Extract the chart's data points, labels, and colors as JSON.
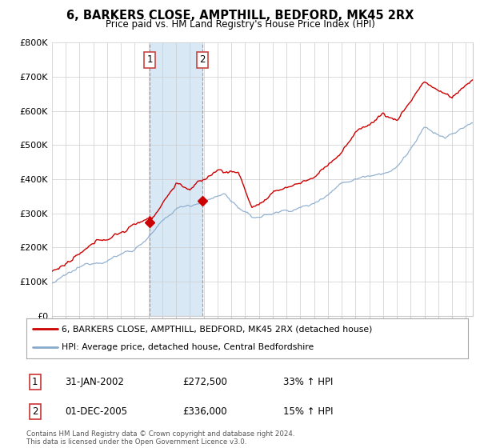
{
  "title": "6, BARKERS CLOSE, AMPTHILL, BEDFORD, MK45 2RX",
  "subtitle": "Price paid vs. HM Land Registry's House Price Index (HPI)",
  "ylabel_ticks": [
    "£0",
    "£100K",
    "£200K",
    "£300K",
    "£400K",
    "£500K",
    "£600K",
    "£700K",
    "£800K"
  ],
  "ytick_values": [
    0,
    100000,
    200000,
    300000,
    400000,
    500000,
    600000,
    700000,
    800000
  ],
  "ylim": [
    0,
    800000
  ],
  "xlim_start": 1995.0,
  "xlim_end": 2025.5,
  "sale1_x": 2002.083,
  "sale1_y": 272500,
  "sale1_label": "1",
  "sale2_x": 2005.917,
  "sale2_y": 336000,
  "sale2_label": "2",
  "vline1_x": 2002.083,
  "vline2_x": 2005.917,
  "legend_line1": "6, BARKERS CLOSE, AMPTHILL, BEDFORD, MK45 2RX (detached house)",
  "legend_line2": "HPI: Average price, detached house, Central Bedfordshire",
  "table_row1": [
    "1",
    "31-JAN-2002",
    "£272,500",
    "33% ↑ HPI"
  ],
  "table_row2": [
    "2",
    "01-DEC-2005",
    "£336,000",
    "15% ↑ HPI"
  ],
  "footnote": "Contains HM Land Registry data © Crown copyright and database right 2024.\nThis data is licensed under the Open Government Licence v3.0.",
  "line_color_red": "#cc0000",
  "line_color_blue": "#88aacc",
  "vline_color": "#cc8888",
  "bg_color": "#ffffff",
  "grid_color": "#cccccc",
  "highlight_bg": "#d8e8f5"
}
